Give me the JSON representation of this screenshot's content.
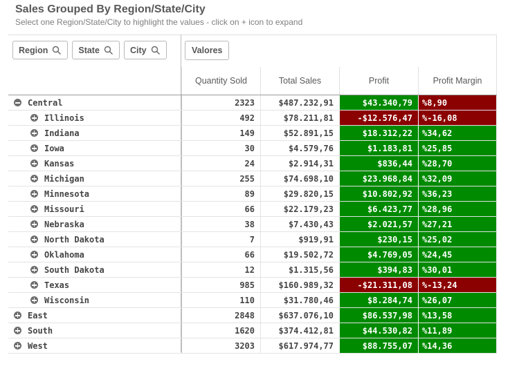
{
  "header": {
    "title": "Sales Grouped By Region/State/City",
    "subtitle": "Select one Region/State/City to highlight the values - click on + icon to expand"
  },
  "filters": [
    {
      "label": "Region",
      "icon": "search-icon"
    },
    {
      "label": "State",
      "icon": "search-icon"
    },
    {
      "label": "City",
      "icon": "search-icon"
    }
  ],
  "valores_label": "Valores",
  "columns": {
    "quantity": "Quantity Sold",
    "sales": "Total Sales",
    "profit": "Profit",
    "margin": "Profit Margin"
  },
  "colors": {
    "positive": "#008a00",
    "negative": "#8b0000",
    "toggle": "#6d6d6d"
  },
  "rows": [
    {
      "level": 0,
      "expanded": true,
      "name": "Central",
      "quantity": "2323",
      "sales": "$487.232,91",
      "profit": "$43.340,79",
      "margin": "%8,90",
      "status": "negative"
    },
    {
      "level": 1,
      "expanded": false,
      "name": "Illinois",
      "quantity": "492",
      "sales": "$78.211,81",
      "profit": "-$12.576,47",
      "margin": "%-16,08",
      "status": "negative"
    },
    {
      "level": 1,
      "expanded": false,
      "name": "Indiana",
      "quantity": "149",
      "sales": "$52.891,15",
      "profit": "$18.312,22",
      "margin": "%34,62",
      "status": "positive"
    },
    {
      "level": 1,
      "expanded": false,
      "name": "Iowa",
      "quantity": "30",
      "sales": "$4.579,76",
      "profit": "$1.183,81",
      "margin": "%25,85",
      "status": "positive"
    },
    {
      "level": 1,
      "expanded": false,
      "name": "Kansas",
      "quantity": "24",
      "sales": "$2.914,31",
      "profit": "$836,44",
      "margin": "%28,70",
      "status": "positive"
    },
    {
      "level": 1,
      "expanded": false,
      "name": "Michigan",
      "quantity": "255",
      "sales": "$74.698,10",
      "profit": "$23.968,84",
      "margin": "%32,09",
      "status": "positive"
    },
    {
      "level": 1,
      "expanded": false,
      "name": "Minnesota",
      "quantity": "89",
      "sales": "$29.820,15",
      "profit": "$10.802,92",
      "margin": "%36,23",
      "status": "positive"
    },
    {
      "level": 1,
      "expanded": false,
      "name": "Missouri",
      "quantity": "66",
      "sales": "$22.179,23",
      "profit": "$6.423,77",
      "margin": "%28,96",
      "status": "positive"
    },
    {
      "level": 1,
      "expanded": false,
      "name": "Nebraska",
      "quantity": "38",
      "sales": "$7.430,43",
      "profit": "$2.021,57",
      "margin": "%27,21",
      "status": "positive"
    },
    {
      "level": 1,
      "expanded": false,
      "name": "North Dakota",
      "quantity": "7",
      "sales": "$919,91",
      "profit": "$230,15",
      "margin": "%25,02",
      "status": "positive"
    },
    {
      "level": 1,
      "expanded": false,
      "name": "Oklahoma",
      "quantity": "66",
      "sales": "$19.502,72",
      "profit": "$4.769,05",
      "margin": "%24,45",
      "status": "positive"
    },
    {
      "level": 1,
      "expanded": false,
      "name": "South Dakota",
      "quantity": "12",
      "sales": "$1.315,56",
      "profit": "$394,83",
      "margin": "%30,01",
      "status": "positive"
    },
    {
      "level": 1,
      "expanded": false,
      "name": "Texas",
      "quantity": "985",
      "sales": "$160.989,32",
      "profit": "-$21.311,08",
      "margin": "%-13,24",
      "status": "negative"
    },
    {
      "level": 1,
      "expanded": false,
      "name": "Wisconsin",
      "quantity": "110",
      "sales": "$31.780,46",
      "profit": "$8.284,74",
      "margin": "%26,07",
      "status": "positive"
    },
    {
      "level": 0,
      "expanded": false,
      "name": "East",
      "quantity": "2848",
      "sales": "$637.076,10",
      "profit": "$86.537,98",
      "margin": "%13,58",
      "status": "positive"
    },
    {
      "level": 0,
      "expanded": false,
      "name": "South",
      "quantity": "1620",
      "sales": "$374.412,81",
      "profit": "$44.530,82",
      "margin": "%11,89",
      "status": "positive"
    },
    {
      "level": 0,
      "expanded": false,
      "name": "West",
      "quantity": "3203",
      "sales": "$617.974,77",
      "profit": "$88.755,07",
      "margin": "%14,36",
      "status": "positive"
    }
  ]
}
